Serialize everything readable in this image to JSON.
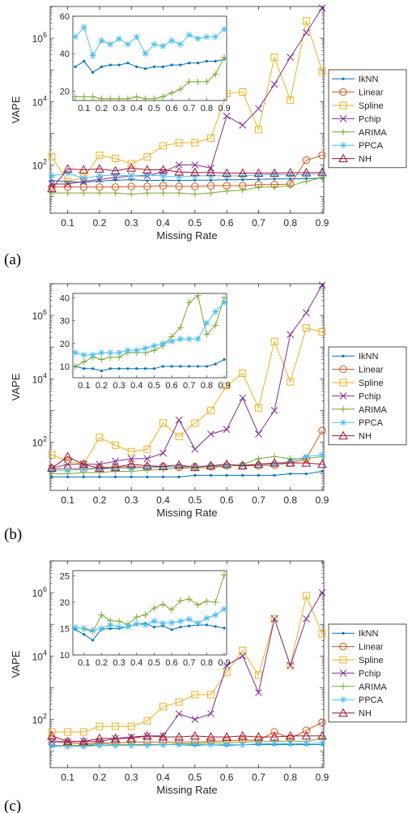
{
  "panels": [
    {
      "caption": "(a)"
    },
    {
      "caption": "(b)"
    },
    {
      "caption": "(c)"
    }
  ],
  "colors": {
    "IkNN": "#0072bd",
    "Linear": "#d95319",
    "Spline": "#edb120",
    "Pchip": "#7e2f8e",
    "ARIMA": "#77ac30",
    "PPCA": "#4dbeee",
    "NH": "#a2142f"
  },
  "chart_data": [
    {
      "type": "line",
      "xlabel": "Missing Rate",
      "ylabel": "VAPE",
      "yscale": "log",
      "xlim": [
        0.05,
        0.9
      ],
      "ylim": [
        3,
        10000000
      ],
      "x": [
        0.05,
        0.1,
        0.15,
        0.2,
        0.25,
        0.3,
        0.35,
        0.4,
        0.45,
        0.5,
        0.55,
        0.6,
        0.65,
        0.7,
        0.75,
        0.8,
        0.85,
        0.9
      ],
      "x_ticks": [
        "0.1",
        "0.2",
        "0.3",
        "0.4",
        "0.5",
        "0.6",
        "0.7",
        "0.8",
        "0.9"
      ],
      "y_ticks": [
        "10^2",
        "10^4",
        "10^6"
      ],
      "legend": "outside-right",
      "series": [
        {
          "name": "IkNN",
          "marker": "dot",
          "values": [
            32,
            30,
            28,
            31,
            33,
            34,
            32,
            33,
            32,
            33,
            33,
            34,
            34,
            35,
            36,
            36,
            37,
            38
          ]
        },
        {
          "name": "Linear",
          "marker": "circle",
          "values": [
            20,
            20,
            20,
            20,
            20,
            21,
            21,
            22,
            21,
            21,
            22,
            22,
            22,
            24,
            24,
            25,
            140,
            200
          ]
        },
        {
          "name": "Spline",
          "marker": "square",
          "values": [
            180,
            30,
            40,
            200,
            160,
            110,
            180,
            400,
            500,
            500,
            700,
            18000,
            20000,
            1300,
            250000,
            11000,
            3500000,
            90000
          ]
        },
        {
          "name": "Pchip",
          "marker": "x",
          "values": [
            25,
            25,
            30,
            35,
            40,
            45,
            45,
            60,
            100,
            100,
            80,
            3500,
            1800,
            6000,
            35000,
            250000,
            1500000,
            9000000
          ]
        },
        {
          "name": "ARIMA",
          "marker": "plus",
          "values": [
            13,
            13,
            13,
            13,
            13,
            12,
            13,
            13,
            13,
            12,
            13,
            15,
            16,
            20,
            20,
            22,
            30,
            40
          ]
        },
        {
          "name": "PPCA",
          "marker": "asterisk",
          "values": [
            45,
            55,
            38,
            45,
            48,
            45,
            48,
            45,
            42,
            45,
            46,
            45,
            45,
            48,
            50,
            48,
            50,
            52
          ]
        },
        {
          "name": "NH",
          "marker": "triangle",
          "values": [
            18,
            75,
            70,
            75,
            65,
            80,
            70,
            70,
            60,
            58,
            58,
            55,
            55,
            55,
            55,
            57,
            57,
            58
          ]
        }
      ],
      "inset": {
        "xlim": [
          0.05,
          0.9
        ],
        "ylim": [
          15,
          60
        ],
        "x_ticks": [
          "0.1",
          "0.2",
          "0.3",
          "0.4",
          "0.5",
          "0.6",
          "0.7",
          "0.8",
          "0.9"
        ],
        "y_ticks": [
          "20",
          "40",
          "60"
        ],
        "series": [
          {
            "name": "IkNN",
            "values": [
              33,
              36,
              30,
              33,
              34,
              34,
              35,
              33,
              32,
              33,
              33,
              34,
              34,
              35,
              35,
              36,
              36,
              37
            ]
          },
          {
            "name": "ARIMA",
            "values": [
              17,
              17,
              17,
              16,
              16,
              16,
              16,
              17,
              16,
              16,
              17,
              19,
              21,
              25,
              25,
              25,
              29,
              38
            ]
          },
          {
            "name": "PPCA",
            "values": [
              49,
              54,
              39,
              47,
              45,
              48,
              45,
              49,
              40,
              45,
              44,
              47,
              45,
              50,
              48,
              49,
              49,
              53
            ]
          }
        ]
      }
    },
    {
      "type": "line",
      "xlabel": "Missing Rate",
      "ylabel": "VAPE",
      "yscale": "log",
      "xlim": [
        0.05,
        0.9
      ],
      "ylim": [
        3,
        10000000
      ],
      "x": [
        0.05,
        0.1,
        0.15,
        0.2,
        0.25,
        0.3,
        0.35,
        0.4,
        0.45,
        0.5,
        0.55,
        0.6,
        0.65,
        0.7,
        0.75,
        0.8,
        0.85,
        0.9
      ],
      "x_ticks": [
        "0.1",
        "0.2",
        "0.3",
        "0.4",
        "0.5",
        "0.6",
        "0.7",
        "0.8",
        "0.9"
      ],
      "y_ticks": [
        "10^2",
        "10^4",
        "10^6"
      ],
      "legend": "outside-right",
      "series": [
        {
          "name": "IkNN",
          "marker": "dot",
          "values": [
            8,
            8,
            8,
            8,
            8,
            8,
            8,
            8,
            8,
            9,
            9,
            9,
            9,
            9,
            9,
            10,
            10,
            12
          ]
        },
        {
          "name": "Linear",
          "marker": "circle",
          "values": [
            14,
            15,
            14,
            16,
            16,
            17,
            16,
            17,
            16,
            17,
            17,
            18,
            18,
            18,
            19,
            22,
            30,
            230
          ]
        },
        {
          "name": "Spline",
          "marker": "square",
          "values": [
            40,
            25,
            20,
            140,
            80,
            50,
            60,
            400,
            150,
            400,
            1000,
            6000,
            15000,
            1200,
            150000,
            8000,
            400000,
            300000
          ]
        },
        {
          "name": "Pchip",
          "marker": "x",
          "values": [
            15,
            20,
            20,
            20,
            25,
            30,
            30,
            45,
            500,
            60,
            180,
            250,
            2500,
            180,
            1000,
            250000,
            1200000,
            9000000
          ]
        },
        {
          "name": "ARIMA",
          "marker": "plus",
          "values": [
            10,
            10,
            11,
            11,
            12,
            12,
            13,
            14,
            15,
            15,
            16,
            17,
            20,
            30,
            35,
            30,
            30,
            35
          ]
        },
        {
          "name": "PPCA",
          "marker": "asterisk",
          "values": [
            13,
            13,
            14,
            14,
            15,
            15,
            16,
            16,
            17,
            17,
            18,
            18,
            19,
            20,
            20,
            25,
            35,
            40
          ]
        },
        {
          "name": "NH",
          "marker": "triangle",
          "values": [
            15,
            35,
            20,
            15,
            16,
            20,
            18,
            17,
            19,
            16,
            18,
            20,
            18,
            20,
            22,
            22,
            22,
            20
          ]
        }
      ],
      "inset": {
        "xlim": [
          0.05,
          0.9
        ],
        "ylim": [
          5,
          42
        ],
        "x_ticks": [
          "0.1",
          "0.2",
          "0.3",
          "0.4",
          "0.5",
          "0.6",
          "0.7",
          "0.8",
          "0.9"
        ],
        "y_ticks": [
          "10",
          "20",
          "30",
          "40"
        ],
        "series": [
          {
            "name": "IkNN",
            "values": [
              10,
              9,
              9,
              8,
              9,
              9,
              9,
              9,
              9,
              9,
              10,
              10,
              10,
              10,
              10,
              10,
              11,
              13
            ]
          },
          {
            "name": "ARIMA",
            "values": [
              10,
              12,
              14,
              13,
              14,
              14,
              16,
              16,
              16,
              17,
              19,
              23,
              27,
              38,
              41,
              24,
              28,
              40
            ]
          },
          {
            "name": "PPCA",
            "values": [
              16,
              15,
              15,
              16,
              16,
              16,
              17,
              17,
              18,
              19,
              20,
              21,
              22,
              22,
              22,
              29,
              34,
              38
            ]
          }
        ]
      }
    },
    {
      "type": "line",
      "xlabel": "Missing Rate",
      "ylabel": "VAPE",
      "yscale": "log",
      "xlim": [
        0.05,
        0.9
      ],
      "ylim": [
        3,
        10000000
      ],
      "x": [
        0.05,
        0.1,
        0.15,
        0.2,
        0.25,
        0.3,
        0.35,
        0.4,
        0.45,
        0.5,
        0.55,
        0.6,
        0.65,
        0.7,
        0.75,
        0.8,
        0.85,
        0.9
      ],
      "x_ticks": [
        "0.1",
        "0.2",
        "0.3",
        "0.4",
        "0.5",
        "0.6",
        "0.7",
        "0.8",
        "0.9"
      ],
      "y_ticks": [
        "10^2",
        "10^4",
        "10^6"
      ],
      "legend": "outside-right",
      "series": [
        {
          "name": "IkNN",
          "marker": "dot",
          "values": [
            14,
            15,
            15,
            15,
            15,
            16,
            16,
            16,
            16,
            15,
            16,
            15,
            16,
            16,
            16,
            16,
            16,
            16
          ]
        },
        {
          "name": "Linear",
          "marker": "circle",
          "values": [
            20,
            18,
            17,
            18,
            18,
            19,
            19,
            19,
            19,
            19,
            20,
            21,
            22,
            22,
            40,
            25,
            45,
            80
          ]
        },
        {
          "name": "Spline",
          "marker": "square",
          "values": [
            40,
            40,
            40,
            60,
            60,
            60,
            90,
            250,
            350,
            600,
            600,
            3000,
            15000,
            2500,
            150000,
            5000,
            800000,
            50000
          ]
        },
        {
          "name": "Pchip",
          "marker": "x",
          "values": [
            20,
            20,
            20,
            20,
            25,
            28,
            30,
            30,
            150,
            100,
            150,
            5000,
            10000,
            700,
            150000,
            5000,
            150000,
            1000000
          ]
        },
        {
          "name": "ARIMA",
          "marker": "plus",
          "values": [
            15,
            15,
            15,
            17,
            16,
            16,
            16,
            16,
            17,
            17,
            18,
            18,
            19,
            20,
            20,
            21,
            20,
            25
          ]
        },
        {
          "name": "PPCA",
          "marker": "asterisk",
          "values": [
            15,
            14,
            14,
            15,
            15,
            15,
            15,
            16,
            16,
            16,
            16,
            16,
            16,
            17,
            17,
            17,
            17,
            18
          ]
        },
        {
          "name": "NH",
          "marker": "triangle",
          "values": [
            30,
            20,
            20,
            25,
            25,
            25,
            30,
            28,
            28,
            30,
            28,
            28,
            30,
            28,
            28,
            30,
            30,
            30
          ]
        }
      ],
      "inset": {
        "xlim": [
          0.05,
          0.9
        ],
        "ylim": [
          10,
          26
        ],
        "x_ticks": [
          "0.1",
          "0.2",
          "0.3",
          "0.4",
          "0.5",
          "0.6",
          "0.7",
          "0.8",
          "0.9"
        ],
        "y_ticks": [
          "10",
          "15",
          "20",
          "25"
        ],
        "series": [
          {
            "name": "IkNN",
            "values": [
              14.8,
              13.9,
              12.8,
              14.9,
              15.0,
              15.0,
              15.4,
              15.8,
              16.0,
              15.3,
              15.5,
              14.8,
              15.3,
              15.5,
              15.7,
              15.7,
              15.4,
              15.1
            ]
          },
          {
            "name": "ARIMA",
            "values": [
              15.2,
              15.0,
              14.4,
              17.6,
              16.5,
              16.4,
              15.8,
              17.2,
              17.6,
              18.9,
              19.6,
              18.6,
              20.3,
              20.6,
              19.5,
              20.2,
              20.0,
              25.2
            ]
          },
          {
            "name": "PPCA",
            "values": [
              15.2,
              15.0,
              14.7,
              15.0,
              15.7,
              15.3,
              15.3,
              15.9,
              15.7,
              16.4,
              16.0,
              16.1,
              16.4,
              16.8,
              16.0,
              17.0,
              17.6,
              18.7
            ]
          }
        ]
      }
    }
  ]
}
